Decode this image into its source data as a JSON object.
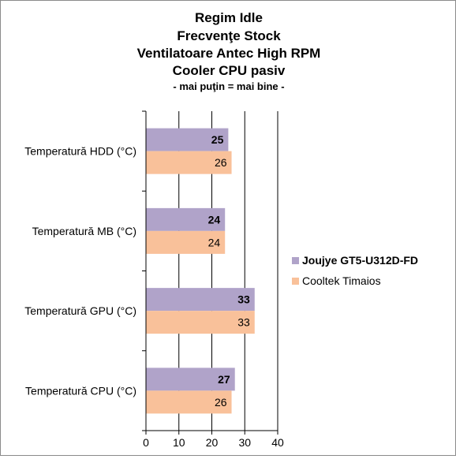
{
  "chart_data": {
    "type": "bar",
    "orientation": "horizontal",
    "title_lines": [
      "Regim Idle",
      "Frecvenţe Stock",
      "Ventilatoare Antec High RPM",
      "Cooler CPU pasiv"
    ],
    "subtitle": "- mai puţin = mai bine -",
    "categories": [
      "Temperatură  HDD (°C)",
      "Temperatură  MB (°C)",
      "Temperatură  GPU (°C)",
      "Temperatură  CPU (°C)"
    ],
    "series": [
      {
        "name": "Joujye GT5-U312D-FD",
        "color": "#b0a3c9",
        "bold": true,
        "values": [
          25,
          24,
          33,
          27
        ]
      },
      {
        "name": "Cooltek Timaios",
        "color": "#f9c19a",
        "bold": false,
        "values": [
          26,
          24,
          33,
          26
        ]
      }
    ],
    "xlim": [
      0,
      40
    ],
    "xticks": [
      0,
      10,
      20,
      30,
      40
    ],
    "grid": true,
    "legend_position": "right"
  }
}
